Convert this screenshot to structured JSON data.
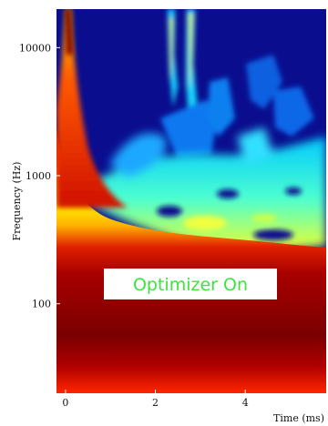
{
  "chart_data": {
    "type": "heatmap",
    "xlabel": "Time (ms)",
    "ylabel": "Frequency (Hz)",
    "x_ticks": [
      0,
      2,
      4
    ],
    "y_ticks": [
      100,
      1000,
      10000
    ],
    "x_range": [
      -0.2,
      5.8
    ],
    "y_range": [
      20,
      20000
    ],
    "y_scale": "log",
    "colormap": "jet",
    "annotation": "Optimizer On",
    "annotation_color": "#3fe33f",
    "colors": {
      "background": "#0a0d8e",
      "max": "#7a0000"
    }
  }
}
